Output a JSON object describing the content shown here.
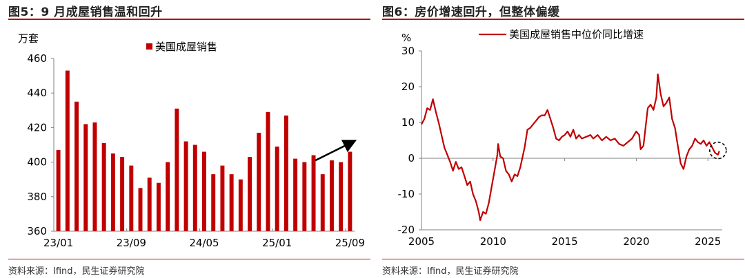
{
  "colors": {
    "accent": "#c00000",
    "rule": "#b40c0c",
    "axis": "#808080"
  },
  "left": {
    "title": "图5：9 月成屋销售温和回升",
    "source": "资料来源：Ifind，民生证券研究院"
  },
  "right": {
    "title": "图6：房价增速回升，但整体偏缓",
    "source": "资料来源：Ifind，民生证券研究院"
  },
  "chart_data": [
    {
      "type": "bar",
      "unit": "万套",
      "ylim": [
        360,
        460
      ],
      "yticks": [
        360,
        380,
        400,
        420,
        440,
        460
      ],
      "categories": [
        "23/01",
        "23/02",
        "23/03",
        "23/04",
        "23/05",
        "23/06",
        "23/07",
        "23/08",
        "23/09",
        "23/10",
        "23/11",
        "23/12",
        "24/01",
        "24/02",
        "24/03",
        "24/04",
        "24/05",
        "24/06",
        "24/07",
        "24/08",
        "24/09",
        "24/10",
        "24/11",
        "24/12",
        "25/01",
        "25/02",
        "25/03",
        "25/04",
        "25/05",
        "25/06",
        "25/07",
        "25/08",
        "25/09"
      ],
      "xtick_labels": [
        "23/01",
        "23/09",
        "24/05",
        "25/01",
        "25/09"
      ],
      "series": [
        {
          "name": "美国成屋销售",
          "values": [
            407,
            453,
            435,
            422,
            423,
            411,
            405,
            403,
            398,
            385,
            391,
            388,
            400,
            431,
            412,
            410,
            406,
            393,
            398,
            393,
            390,
            403,
            417,
            429,
            409,
            427,
            402,
            400,
            404,
            393,
            401,
            400,
            406
          ]
        }
      ],
      "legend_position": "top-center",
      "annotation": "upward-arrow"
    },
    {
      "type": "line",
      "unit": "%",
      "ylim": [
        -20,
        30
      ],
      "yticks": [
        -20,
        -10,
        0,
        10,
        20,
        30
      ],
      "xlim": [
        2005,
        2026
      ],
      "xticks": [
        2005,
        2010,
        2015,
        2020,
        2025
      ],
      "series": [
        {
          "name": "美国成屋销售中位价同比增速",
          "points": [
            [
              2005.0,
              9.5
            ],
            [
              2005.2,
              11.0
            ],
            [
              2005.4,
              14.0
            ],
            [
              2005.6,
              13.5
            ],
            [
              2005.8,
              16.5
            ],
            [
              2006.0,
              13.0
            ],
            [
              2006.2,
              10.0
            ],
            [
              2006.4,
              6.5
            ],
            [
              2006.6,
              3.0
            ],
            [
              2006.8,
              1.0
            ],
            [
              2007.0,
              -1.0
            ],
            [
              2007.2,
              -3.5
            ],
            [
              2007.4,
              -1.0
            ],
            [
              2007.6,
              -3.0
            ],
            [
              2007.8,
              -2.5
            ],
            [
              2008.0,
              -5.0
            ],
            [
              2008.2,
              -7.5
            ],
            [
              2008.4,
              -6.5
            ],
            [
              2008.6,
              -10.0
            ],
            [
              2008.8,
              -12.0
            ],
            [
              2009.0,
              -15.0
            ],
            [
              2009.1,
              -17.3
            ],
            [
              2009.3,
              -15.0
            ],
            [
              2009.5,
              -15.5
            ],
            [
              2009.7,
              -12.5
            ],
            [
              2009.9,
              -8.0
            ],
            [
              2010.1,
              -3.5
            ],
            [
              2010.3,
              1.0
            ],
            [
              2010.35,
              4.0
            ],
            [
              2010.5,
              0.5
            ],
            [
              2010.7,
              0.0
            ],
            [
              2010.9,
              -3.5
            ],
            [
              2011.1,
              -4.5
            ],
            [
              2011.3,
              -6.5
            ],
            [
              2011.5,
              -4.5
            ],
            [
              2011.7,
              -5.0
            ],
            [
              2011.9,
              -2.5
            ],
            [
              2012.2,
              3.0
            ],
            [
              2012.4,
              8.0
            ],
            [
              2012.6,
              8.5
            ],
            [
              2012.8,
              9.5
            ],
            [
              2013.0,
              10.5
            ],
            [
              2013.2,
              11.5
            ],
            [
              2013.4,
              12.0
            ],
            [
              2013.6,
              12.0
            ],
            [
              2013.8,
              13.5
            ],
            [
              2014.0,
              11.0
            ],
            [
              2014.2,
              8.5
            ],
            [
              2014.4,
              5.5
            ],
            [
              2014.6,
              5.0
            ],
            [
              2014.8,
              6.0
            ],
            [
              2015.0,
              6.5
            ],
            [
              2015.2,
              7.5
            ],
            [
              2015.4,
              6.0
            ],
            [
              2015.6,
              8.0
            ],
            [
              2015.8,
              5.5
            ],
            [
              2016.0,
              6.5
            ],
            [
              2016.2,
              5.5
            ],
            [
              2016.5,
              6.0
            ],
            [
              2016.8,
              6.5
            ],
            [
              2017.0,
              5.5
            ],
            [
              2017.3,
              6.5
            ],
            [
              2017.6,
              5.0
            ],
            [
              2017.9,
              6.0
            ],
            [
              2018.2,
              5.0
            ],
            [
              2018.5,
              5.5
            ],
            [
              2018.8,
              4.0
            ],
            [
              2019.1,
              3.5
            ],
            [
              2019.4,
              4.5
            ],
            [
              2019.7,
              5.5
            ],
            [
              2020.0,
              7.5
            ],
            [
              2020.2,
              6.5
            ],
            [
              2020.3,
              2.5
            ],
            [
              2020.5,
              3.5
            ],
            [
              2020.8,
              14.0
            ],
            [
              2021.0,
              15.0
            ],
            [
              2021.2,
              13.5
            ],
            [
              2021.4,
              17.0
            ],
            [
              2021.5,
              23.5
            ],
            [
              2021.7,
              18.0
            ],
            [
              2021.9,
              14.5
            ],
            [
              2022.1,
              15.5
            ],
            [
              2022.3,
              17.0
            ],
            [
              2022.5,
              11.0
            ],
            [
              2022.7,
              8.5
            ],
            [
              2022.9,
              3.5
            ],
            [
              2023.1,
              -1.5
            ],
            [
              2023.3,
              -3.0
            ],
            [
              2023.5,
              0.5
            ],
            [
              2023.7,
              2.5
            ],
            [
              2023.9,
              3.5
            ],
            [
              2024.1,
              5.5
            ],
            [
              2024.3,
              4.5
            ],
            [
              2024.5,
              4.0
            ],
            [
              2024.7,
              5.0
            ],
            [
              2024.9,
              3.5
            ],
            [
              2025.1,
              4.5
            ],
            [
              2025.3,
              3.0
            ],
            [
              2025.5,
              1.5
            ],
            [
              2025.7,
              1.0
            ],
            [
              2025.8,
              2.0
            ]
          ]
        }
      ],
      "legend_position": "top-center",
      "annotation": "dashed-circle-highlight"
    }
  ]
}
